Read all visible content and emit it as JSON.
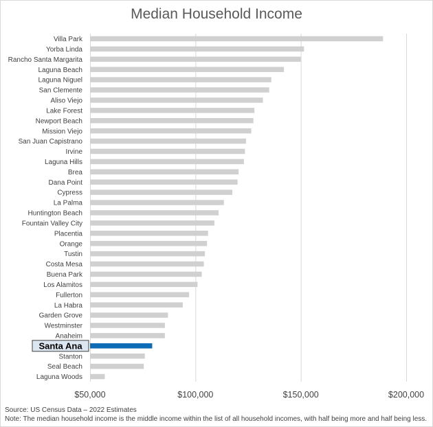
{
  "chart_data": {
    "type": "bar",
    "orientation": "horizontal",
    "title": "Median Household Income",
    "xlabel": "",
    "ylabel": "",
    "xlim": [
      50000,
      200000
    ],
    "x_ticks": [
      50000,
      100000,
      150000,
      200000
    ],
    "x_tick_labels": [
      "$50,000",
      "$100,000",
      "$150,000",
      "$200,000"
    ],
    "grid": true,
    "highlight": "Santa Ana",
    "categories": [
      "Villa Park",
      "Yorba Linda",
      "Rancho Santa Margarita",
      "Laguna Beach",
      "Laguna Niguel",
      "San Clemente",
      "Aliso Viejo",
      "Lake Forest",
      "Newport Beach",
      "Mission Viejo",
      "San Juan Capistrano",
      "Irvine",
      "Laguna Hills",
      "Brea",
      "Dana Point",
      "Cypress",
      "La Palma",
      "Huntington Beach",
      "Fountain Valley City",
      "Placentia",
      "Orange",
      "Tustin",
      "Costa Mesa",
      "Buena Park",
      "Los Alamitos",
      "Fullerton",
      "La Habra",
      "Garden Grove",
      "Westminster",
      "Anaheim",
      "Santa Ana",
      "Stanton",
      "Seal Beach",
      "Laguna Woods"
    ],
    "values": [
      189000,
      151500,
      150000,
      142000,
      136000,
      135000,
      132000,
      128000,
      127500,
      126500,
      124000,
      123500,
      123000,
      120500,
      120000,
      117500,
      113500,
      111000,
      109000,
      106000,
      105500,
      104500,
      104000,
      103000,
      101000,
      97000,
      94000,
      87000,
      85500,
      85500,
      79500,
      76000,
      75500,
      57000
    ],
    "colors": {
      "bar": "#d0d0d0",
      "highlight": "#0e6bb5",
      "grid": "#d9d9d9",
      "label_box": "#dce6f0"
    }
  },
  "footer": {
    "source": "Source: US Census Data – 2022 Estimates",
    "note": "Note: The median household income is the middle income within the list of all household incomes, with half being more and half being less."
  }
}
